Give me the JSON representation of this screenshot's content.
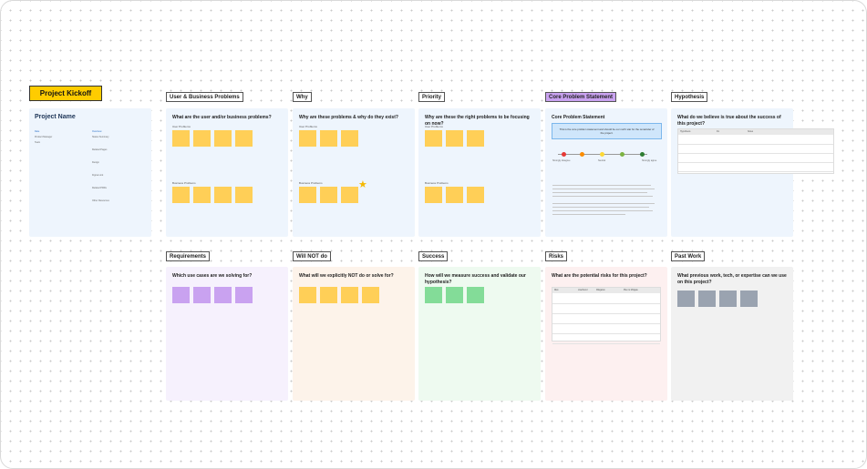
{
  "kickoff": {
    "label": "Project Kickoff"
  },
  "project": {
    "name": "Project Name",
    "fields_left": [
      "Date",
      "Product Manager",
      "Team"
    ],
    "fields_right": [
      "Overview",
      "Status Summary",
      "Related Pages",
      "Design",
      "Figma Link",
      "Related PRDs",
      "Other Resources"
    ]
  },
  "sections": [
    {
      "tag": "User & Business Problems",
      "question": "What are the user and/or business problems?",
      "sub1": "User Problems",
      "sub2": "Business Problems"
    },
    {
      "tag": "Why",
      "question": "Why are these problems & why do they exist?",
      "sub1": "User Problems",
      "sub2": "Business Problems"
    },
    {
      "tag": "Priority",
      "question": "Why are these the right problems to be focusing on now?",
      "sub1": "User Problems",
      "sub2": "Business Problems"
    },
    {
      "tag": "Core Problem Statement",
      "question": "Core Problem Statement",
      "callout": "This is the core problem statement and should be our north star for the remainder of the project.",
      "scale": [
        "Strongly disagree",
        "Neutral",
        "Strongly agree"
      ]
    },
    {
      "tag": "Hypothesis",
      "question": "What do we believe is true about the success of this project?",
      "cols": [
        "Hypothesis",
        "Fix",
        "Notes"
      ]
    }
  ],
  "sections2": [
    {
      "tag": "Requirements",
      "question": "Which use cases are we solving for?"
    },
    {
      "tag": "Will NOT do",
      "question": "What will we explicitly NOT do or solve for?"
    },
    {
      "tag": "Success",
      "question": "How will we measure success and validate our hypothesis?"
    },
    {
      "tag": "Risks",
      "question": "What are the potential risks for this project?",
      "cols": [
        "Risk",
        "Likelihood",
        "Mitigation",
        "Plan to Mitigate"
      ]
    },
    {
      "tag": "Past Work",
      "question": "What previous work, tech, or expertise can we use on this project?"
    }
  ],
  "colors": {
    "kickoff": "#ffcc00",
    "core_tag": "#c9a2f0",
    "sticky_yellow": "#ffcf57",
    "sticky_purple": "#c9a2f0",
    "sticky_green": "#83dc98",
    "sticky_gray": "#9aa3b0"
  }
}
